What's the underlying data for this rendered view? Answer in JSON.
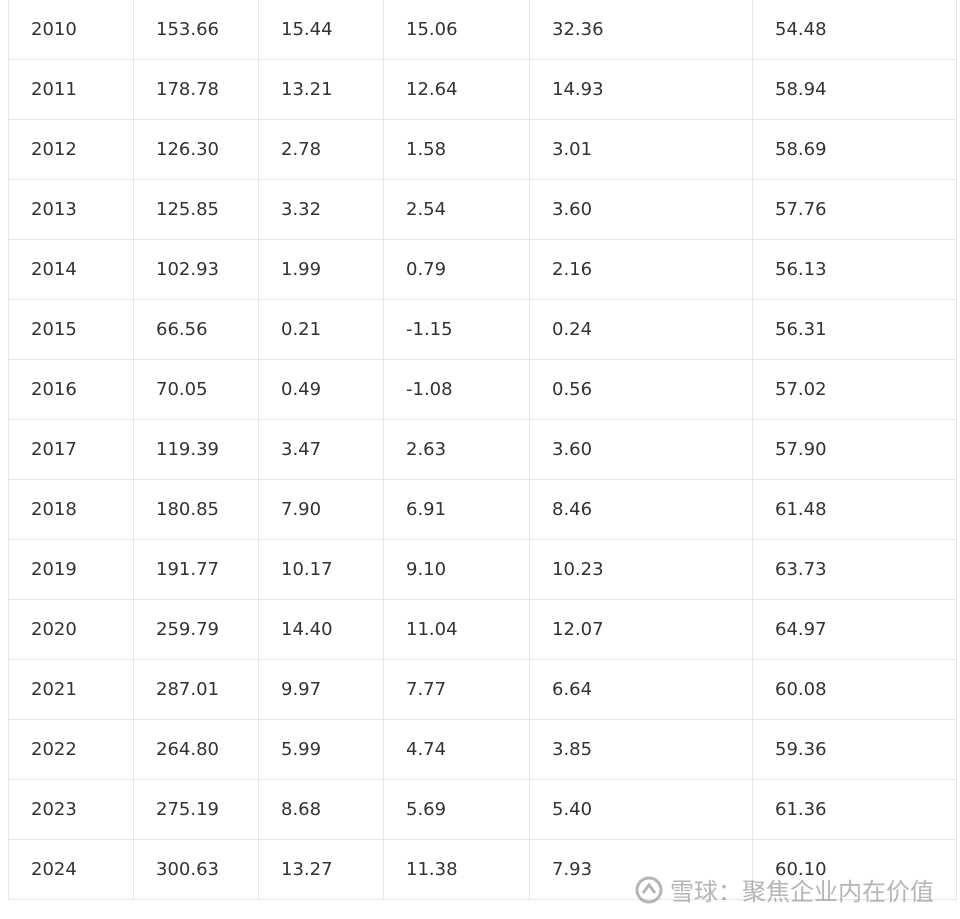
{
  "table": {
    "rows": [
      [
        "2010",
        "153.66",
        "15.44",
        "15.06",
        "32.36",
        "54.48"
      ],
      [
        "2011",
        "178.78",
        "13.21",
        "12.64",
        "14.93",
        "58.94"
      ],
      [
        "2012",
        "126.30",
        "2.78",
        "1.58",
        "3.01",
        "58.69"
      ],
      [
        "2013",
        "125.85",
        "3.32",
        "2.54",
        "3.60",
        "57.76"
      ],
      [
        "2014",
        "102.93",
        "1.99",
        "0.79",
        "2.16",
        "56.13"
      ],
      [
        "2015",
        "66.56",
        "0.21",
        "-1.15",
        "0.24",
        "56.31"
      ],
      [
        "2016",
        "70.05",
        "0.49",
        "-1.08",
        "0.56",
        "57.02"
      ],
      [
        "2017",
        "119.39",
        "3.47",
        "2.63",
        "3.60",
        "57.90"
      ],
      [
        "2018",
        "180.85",
        "7.90",
        "6.91",
        "8.46",
        "61.48"
      ],
      [
        "2019",
        "191.77",
        "10.17",
        "9.10",
        "10.23",
        "63.73"
      ],
      [
        "2020",
        "259.79",
        "14.40",
        "11.04",
        "12.07",
        "64.97"
      ],
      [
        "2021",
        "287.01",
        "9.97",
        "7.77",
        "6.64",
        "60.08"
      ],
      [
        "2022",
        "264.80",
        "5.99",
        "4.74",
        "3.85",
        "59.36"
      ],
      [
        "2023",
        "275.19",
        "8.68",
        "5.69",
        "5.40",
        "61.36"
      ],
      [
        "2024",
        "300.63",
        "13.27",
        "11.38",
        "7.93",
        "60.10"
      ]
    ]
  },
  "watermark": "雪球：聚焦企业内在价值"
}
